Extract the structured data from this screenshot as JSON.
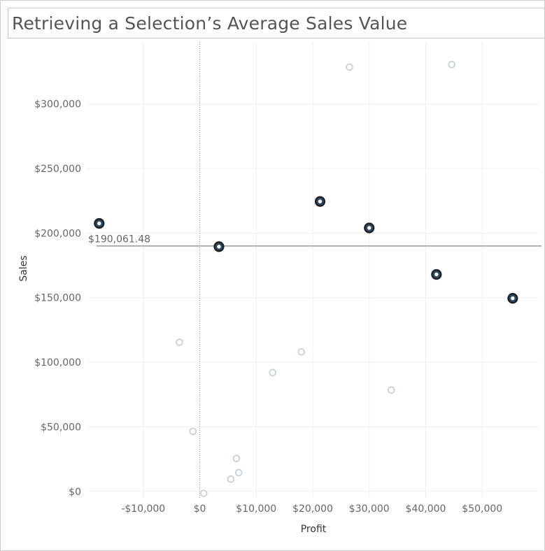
{
  "title": "Retrieving a Selection’s Average Sales Value",
  "chart_data": {
    "type": "scatter",
    "xlabel": "Profit",
    "ylabel": "Sales",
    "xlim": [
      -20000,
      60000
    ],
    "ylim": [
      -5000,
      348000
    ],
    "x_ticks": [
      {
        "value": -10000,
        "label": "-$10,000"
      },
      {
        "value": 0,
        "label": "$0"
      },
      {
        "value": 10000,
        "label": "$10,000"
      },
      {
        "value": 20000,
        "label": "$20,000"
      },
      {
        "value": 30000,
        "label": "$30,000"
      },
      {
        "value": 40000,
        "label": "$40,000"
      },
      {
        "value": 50000,
        "label": "$50,000"
      }
    ],
    "y_ticks": [
      {
        "value": 0,
        "label": "$0"
      },
      {
        "value": 50000,
        "label": "$50,000"
      },
      {
        "value": 100000,
        "label": "$100,000"
      },
      {
        "value": 150000,
        "label": "$150,000"
      },
      {
        "value": 200000,
        "label": "$200,000"
      },
      {
        "value": 250000,
        "label": "$250,000"
      },
      {
        "value": 300000,
        "label": "$300,000"
      }
    ],
    "grid": true,
    "reference_line": {
      "value": 190061.48,
      "label": "$190,061.48"
    },
    "selected_color": "#2f4a63",
    "unselected_color": "#c9d0d8",
    "points": [
      {
        "x": -17800,
        "y": 207500,
        "selected": true
      },
      {
        "x": 3400,
        "y": 189500,
        "selected": true
      },
      {
        "x": 21300,
        "y": 224500,
        "selected": true
      },
      {
        "x": 30000,
        "y": 204000,
        "selected": true
      },
      {
        "x": 41900,
        "y": 168000,
        "selected": true
      },
      {
        "x": 55400,
        "y": 149500,
        "selected": true
      },
      {
        "x": 26500,
        "y": 328500,
        "selected": false
      },
      {
        "x": 44600,
        "y": 330500,
        "selected": false
      },
      {
        "x": -3600,
        "y": 115500,
        "selected": false
      },
      {
        "x": 18000,
        "y": 108000,
        "selected": false
      },
      {
        "x": 12900,
        "y": 92000,
        "selected": false
      },
      {
        "x": 33900,
        "y": 78500,
        "selected": false
      },
      {
        "x": -1200,
        "y": 46500,
        "selected": false
      },
      {
        "x": 6500,
        "y": 25500,
        "selected": false
      },
      {
        "x": 6900,
        "y": 14500,
        "selected": false
      },
      {
        "x": 5500,
        "y": 9500,
        "selected": false
      },
      {
        "x": 700,
        "y": -1500,
        "selected": false
      }
    ]
  }
}
